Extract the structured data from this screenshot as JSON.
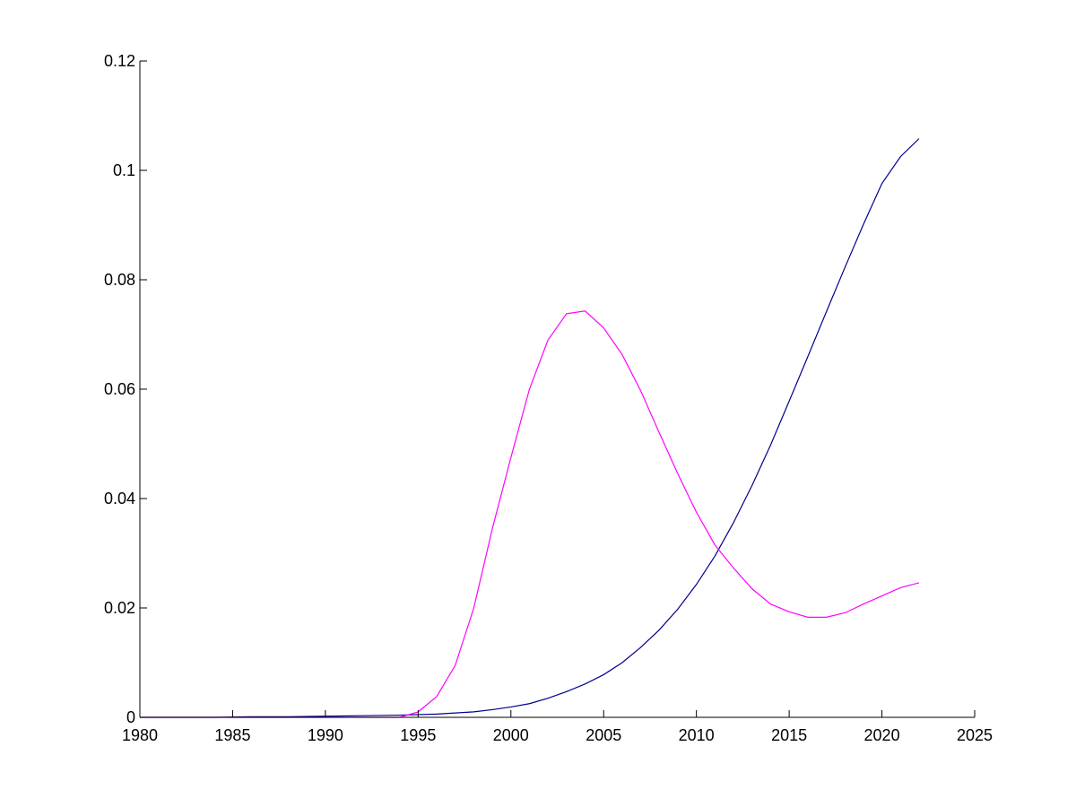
{
  "chart_data": {
    "type": "line",
    "title": "",
    "xlabel": "",
    "ylabel": "",
    "xlim": [
      1980,
      2025
    ],
    "ylim": [
      0,
      0.12
    ],
    "grid": false,
    "x_ticks": [
      "1980",
      "1985",
      "1990",
      "1995",
      "2000",
      "2005",
      "2010",
      "2015",
      "2020",
      "2025"
    ],
    "y_ticks": [
      "0",
      "0.02",
      "0.04",
      "0.06",
      "0.08",
      "0.1",
      "0.12"
    ],
    "series": [
      {
        "color": "#00008b",
        "x": [
          1980,
          1982,
          1984,
          1986,
          1988,
          1990,
          1992,
          1994,
          1996,
          1997,
          1998,
          1999,
          2000,
          2001,
          2002,
          2003,
          2004,
          2005,
          2006,
          2007,
          2008,
          2009,
          2010,
          2011,
          2012,
          2013,
          2014,
          2015,
          2016,
          2017,
          2018,
          2019,
          2020,
          2021,
          2022
        ],
        "y": [
          0.0,
          0.0,
          0.0,
          0.0001,
          0.0001,
          0.0002,
          0.0003,
          0.0004,
          0.0006,
          0.0008,
          0.001,
          0.0014,
          0.0019,
          0.0025,
          0.0035,
          0.0047,
          0.0061,
          0.0078,
          0.01,
          0.0128,
          0.016,
          0.0198,
          0.0243,
          0.0295,
          0.0356,
          0.0424,
          0.0498,
          0.0578,
          0.0659,
          0.0741,
          0.0822,
          0.0901,
          0.0976,
          0.1025,
          0.1058
        ]
      },
      {
        "color": "#ff00ff",
        "x": [
          1980,
          1985,
          1990,
          1994,
          1995,
          1996,
          1997,
          1998,
          1999,
          2000,
          2001,
          2002,
          2003,
          2004,
          2005,
          2006,
          2007,
          2008,
          2009,
          2010,
          2011,
          2012,
          2013,
          2014,
          2015,
          2016,
          2017,
          2018,
          2019,
          2020,
          2021,
          2022
        ],
        "y": [
          0.0,
          0.0,
          0.0,
          0.0,
          0.001,
          0.0038,
          0.0095,
          0.02,
          0.0345,
          0.0475,
          0.06,
          0.069,
          0.0738,
          0.0743,
          0.0712,
          0.0663,
          0.0597,
          0.052,
          0.0445,
          0.0375,
          0.0315,
          0.0273,
          0.0235,
          0.0207,
          0.0193,
          0.0183,
          0.0183,
          0.0191,
          0.0207,
          0.0222,
          0.0237,
          0.0246
        ]
      }
    ]
  }
}
